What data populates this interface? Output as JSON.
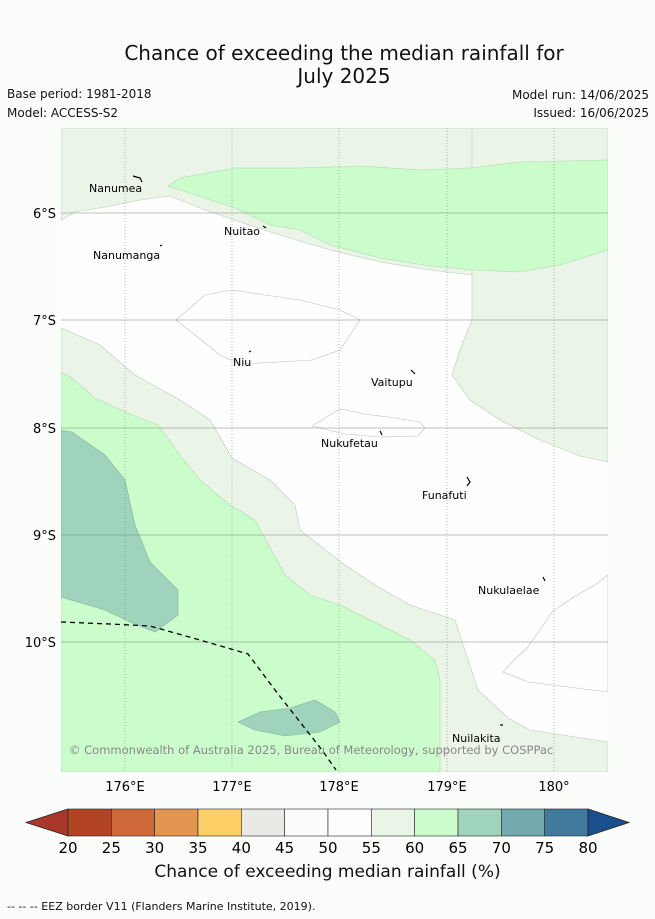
{
  "header": {
    "title_line1": "Chance of exceeding the median rainfall for",
    "title_line2": "July 2025",
    "base_period": "Base period: 1981-2018",
    "model": "Model: ACCESS-S2",
    "model_run": "Model run: 14/06/2025",
    "issued": "Issued: 16/06/2025"
  },
  "map": {
    "lat_labels": [
      "6°S",
      "7°S",
      "8°S",
      "9°S",
      "10°S"
    ],
    "lon_labels": [
      "176°E",
      "177°E",
      "178°E",
      "179°E",
      "180°"
    ],
    "places": [
      "Nanumea",
      "Nuitao",
      "Nanumanga",
      "Niu",
      "Vaitupu",
      "Nukufetau",
      "Funafuti",
      "Nukulaelae",
      "Nuilakita"
    ],
    "copyright": "© Commonwealth of Australia 2025, Bureau of Meteorology, supported by COSPPac"
  },
  "colorbar": {
    "ticks": [
      "20",
      "25",
      "30",
      "35",
      "40",
      "45",
      "50",
      "55",
      "60",
      "65",
      "70",
      "75",
      "80"
    ],
    "colors": [
      "#b24425",
      "#d0693a",
      "#e29650",
      "#fccf67",
      "#e9e9e6",
      "#fbfcfa",
      "#fdfefd",
      "#eaf5e8",
      "#cbfccb",
      "#9fd3bc",
      "#73aaaf",
      "#417a9d"
    ],
    "under_color": "#a8392a",
    "over_color": "#1a4e8c",
    "label": "Chance of exceeding median rainfall (%)"
  },
  "footer": {
    "text": "--  --  -- EEZ border V11 (Flanders Marine Institute, 2019)."
  }
}
